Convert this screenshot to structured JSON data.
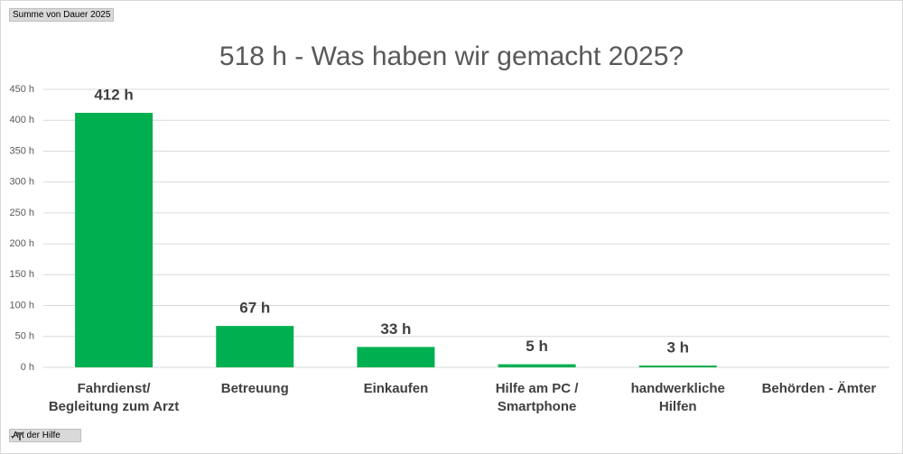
{
  "pivot_buttons": {
    "value_field": "Summe  von Dauer 2025",
    "axis_field": "Art der Hilfe"
  },
  "chart_data": {
    "type": "bar",
    "title": "518 h - Was haben wir gemacht 2025?",
    "categories": [
      "Fahrdienst/\nBegleitung zum Arzt",
      "Betreuung",
      "Einkaufen",
      "Hilfe am PC /\nSmartphone",
      "handwerkliche\nHilfen",
      "Behörden - Ämter"
    ],
    "values": [
      412,
      67,
      33,
      5,
      3,
      null
    ],
    "value_labels": [
      "412 h",
      "67 h",
      "33 h",
      "5 h",
      "3 h",
      null
    ],
    "color": "#00b050",
    "ylim": [
      0,
      450
    ],
    "yticks": [
      {
        "value": 0,
        "label": "0 h"
      },
      {
        "value": 50,
        "label": "50 h"
      },
      {
        "value": 100,
        "label": "100 h"
      },
      {
        "value": 150,
        "label": "150 h"
      },
      {
        "value": 200,
        "label": "200 h"
      },
      {
        "value": 250,
        "label": "250 h"
      },
      {
        "value": 300,
        "label": "300 h"
      },
      {
        "value": 350,
        "label": "350 h"
      },
      {
        "value": 400,
        "label": "400 h"
      },
      {
        "value": 450,
        "label": "450 h"
      }
    ],
    "grid": true
  }
}
